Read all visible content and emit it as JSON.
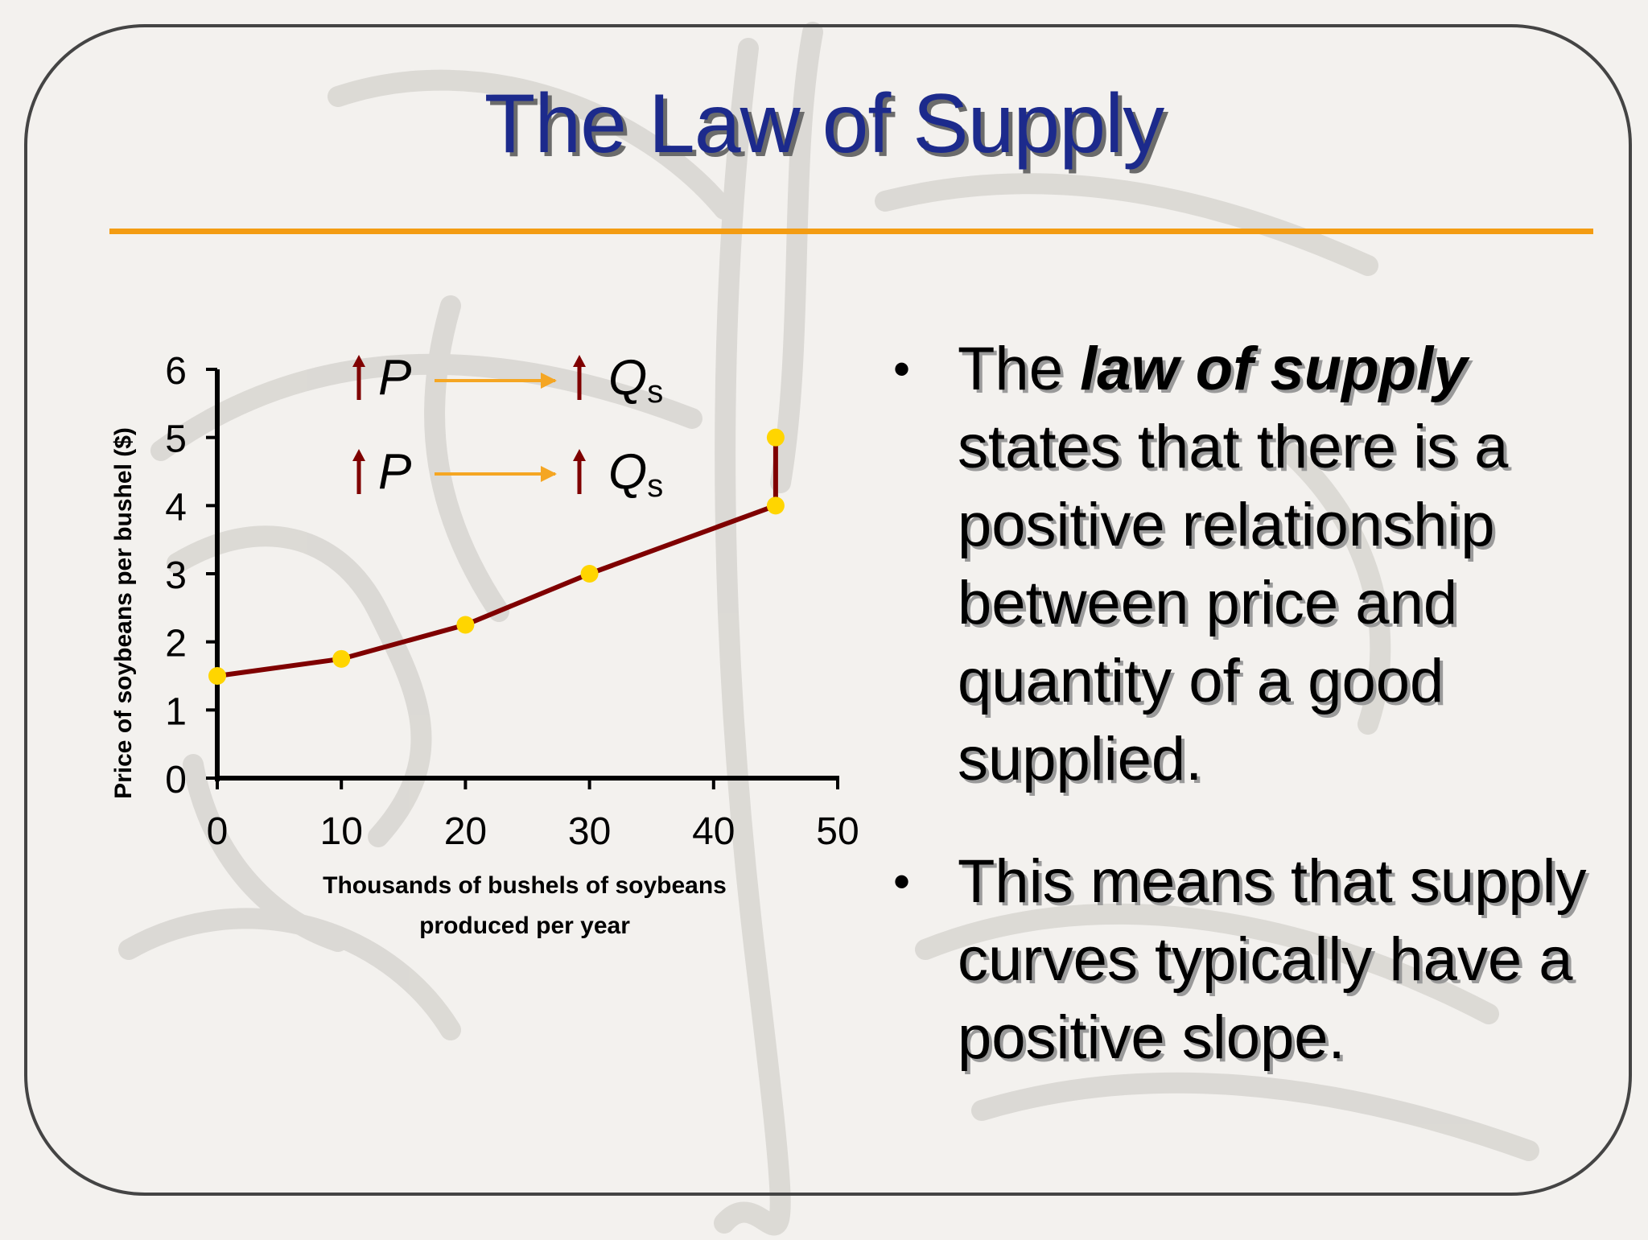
{
  "slide": {
    "title": "The Law of Supply",
    "bullets": [
      {
        "prefix": "The ",
        "emphasis": "law of supply",
        "text": " states that there is a positive relationship between price and quantity of a good supplied."
      },
      {
        "text": "This means that supply curves typically have a positive slope."
      }
    ],
    "annotation": {
      "p_label": "P",
      "q_label": "Q",
      "q_subscript": "s"
    },
    "colors": {
      "title": "#1c2a8c",
      "rule": "#f39c12",
      "curve": "#7f0000",
      "points": "#ffd500",
      "arrow": "#f5a623"
    }
  },
  "chart_data": {
    "type": "line",
    "xlabel": "Thousands of bushels of soybeans produced per year",
    "ylabel": "Price of soybeans per bushel ($)",
    "xlim": [
      0,
      50
    ],
    "ylim": [
      0,
      6
    ],
    "xticks": [
      0,
      10,
      20,
      30,
      40,
      50
    ],
    "yticks": [
      0,
      1,
      2,
      3,
      4,
      5,
      6
    ],
    "series": [
      {
        "x": [
          0,
          10,
          20,
          30,
          45,
          45
        ],
        "y": [
          1.5,
          1.75,
          2.25,
          3,
          4,
          5
        ]
      }
    ]
  }
}
